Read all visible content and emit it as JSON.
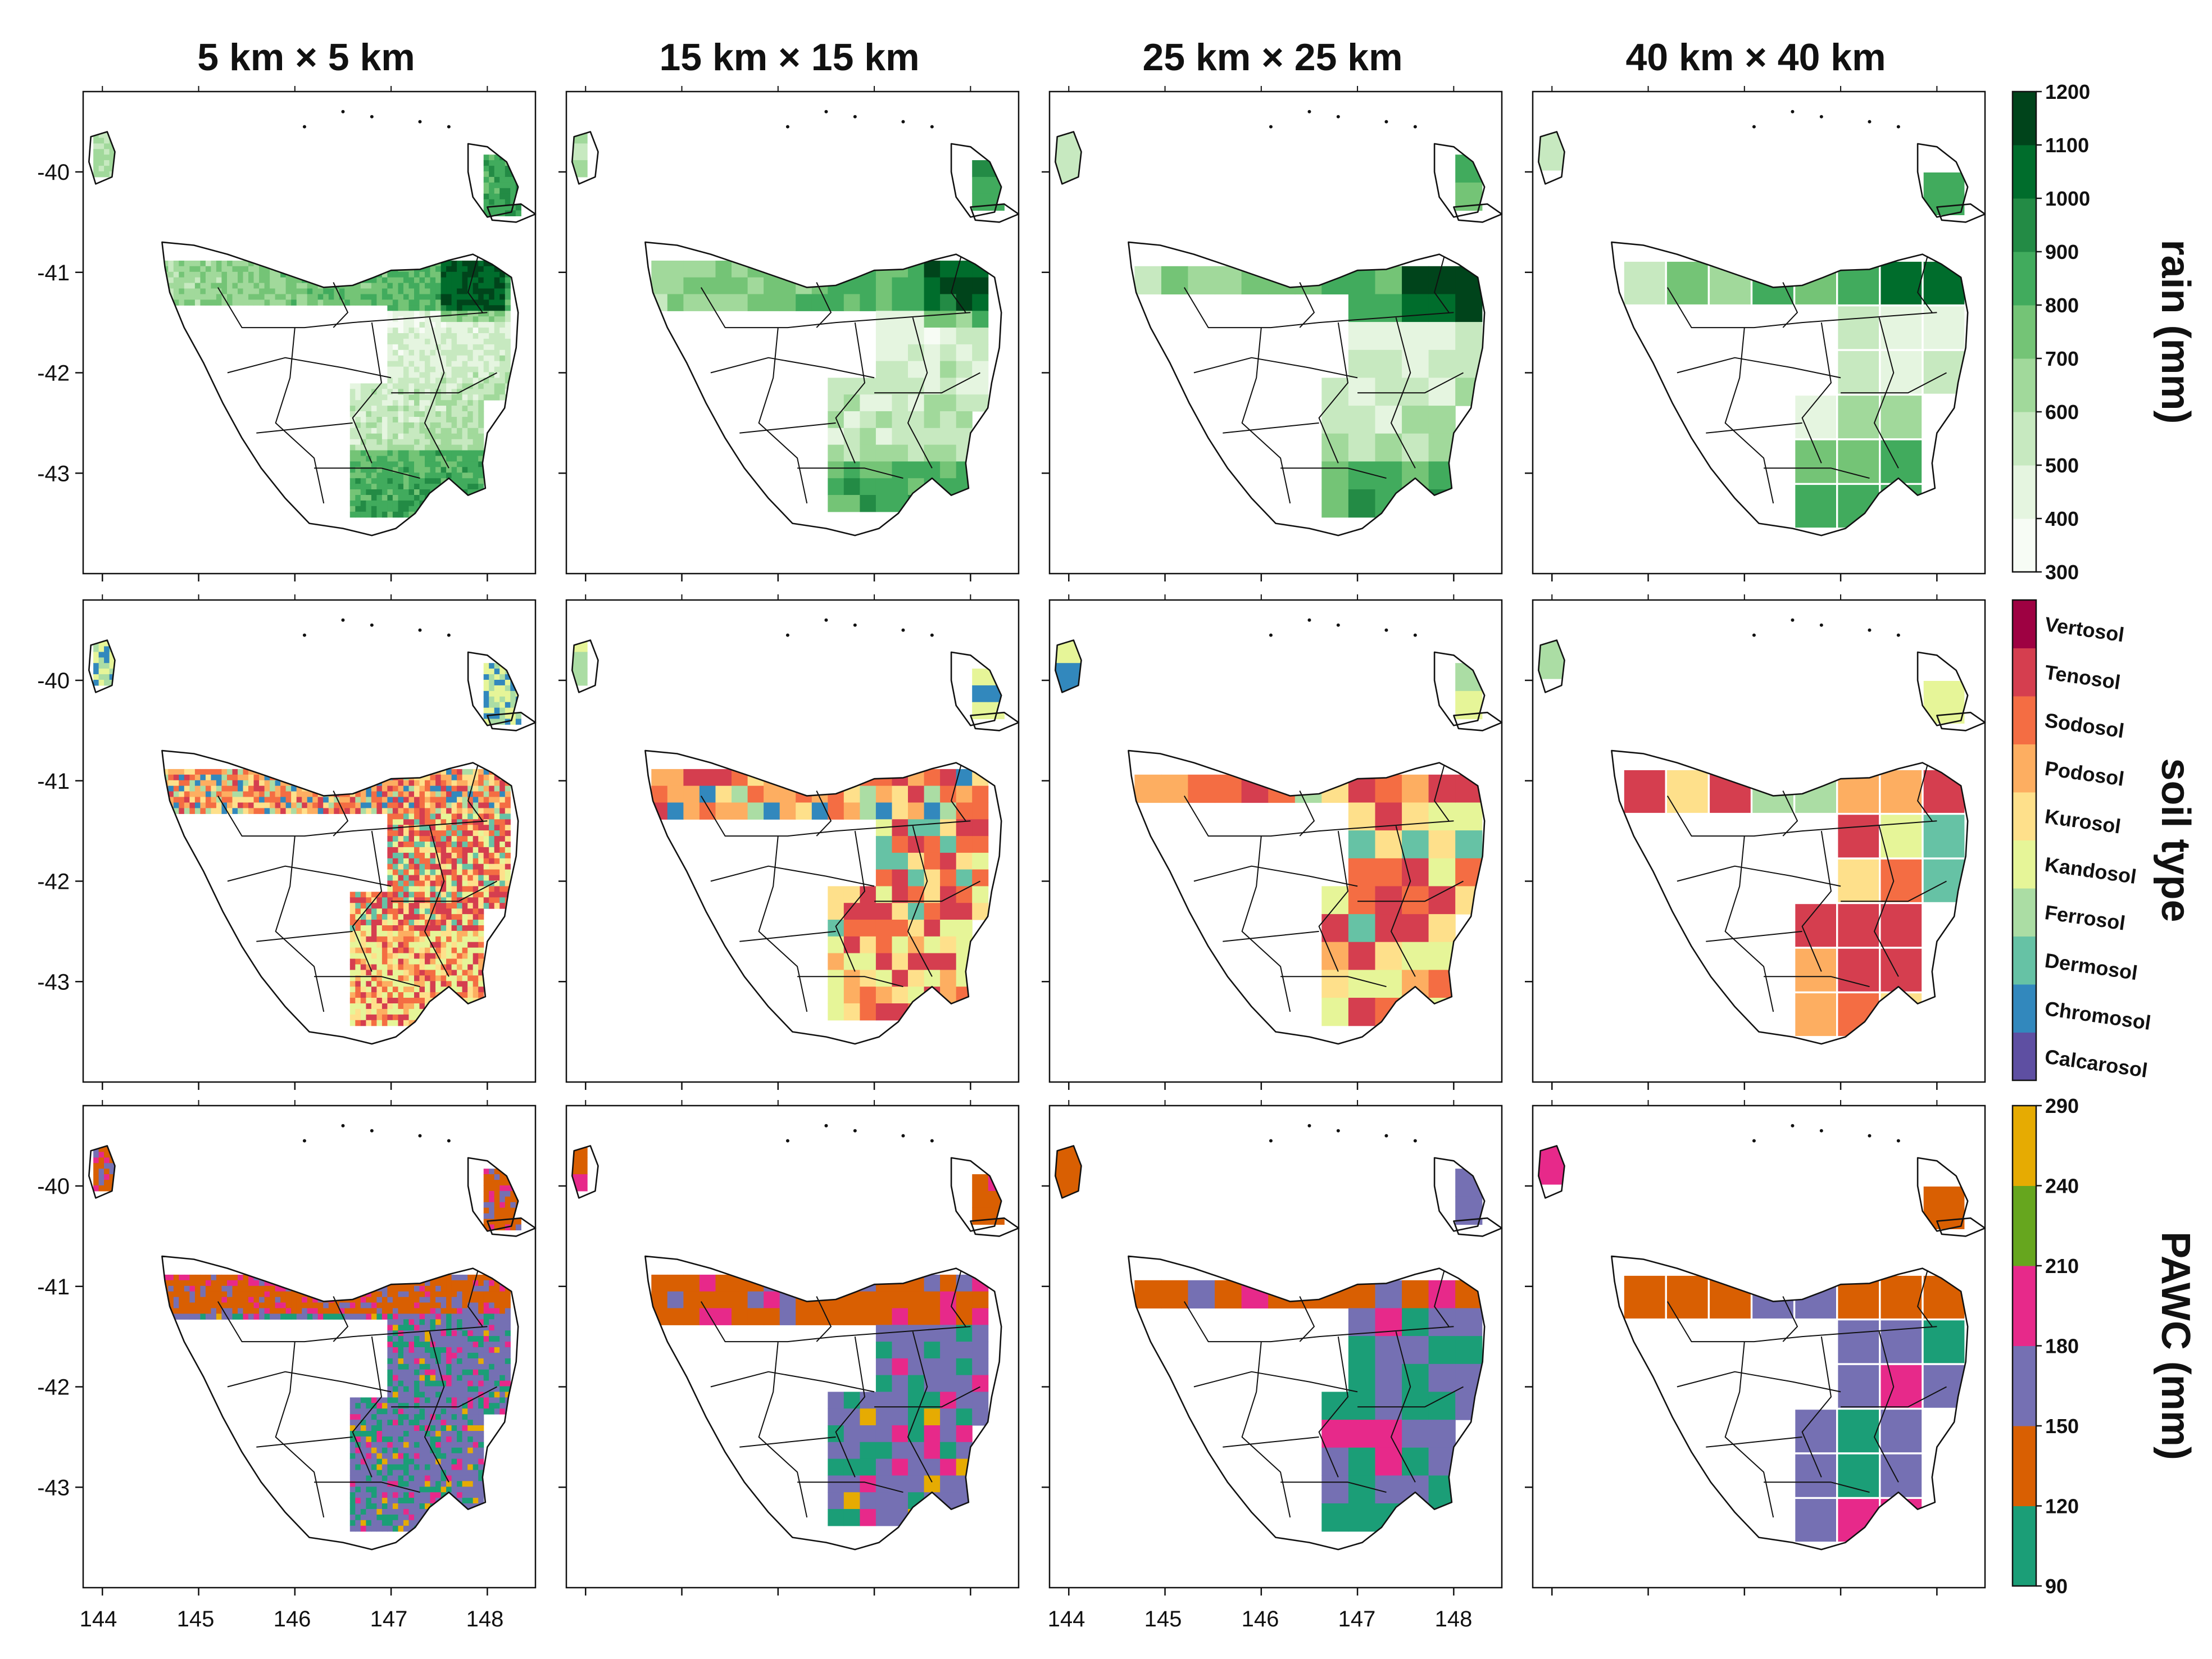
{
  "columns": [
    {
      "title": "5 km × 5 km",
      "res": 5
    },
    {
      "title": "15 km × 15 km",
      "res": 15
    },
    {
      "title": "25 km × 25 km",
      "res": 25
    },
    {
      "title": "40 km × 40 km",
      "res": 40
    }
  ],
  "axes": {
    "lon_ticks": [
      "144",
      "145",
      "146",
      "147",
      "148"
    ],
    "lat_ticks": [
      "-40",
      "-41",
      "-42",
      "-43"
    ],
    "lon_range": [
      143.8,
      148.5
    ],
    "lat_range": [
      -44.0,
      -39.2
    ]
  },
  "rows": [
    {
      "key": "rain",
      "title": "rain (mm)",
      "type": "continuous",
      "levels": [
        "300",
        "400",
        "500",
        "600",
        "700",
        "800",
        "900",
        "1000",
        "1100",
        "1200"
      ],
      "colors": [
        "#f7fcf5",
        "#e5f5e0",
        "#c7e9c0",
        "#a1d99b",
        "#74c476",
        "#41ab5d",
        "#238b45",
        "#006d2c",
        "#00441b"
      ]
    },
    {
      "key": "soil",
      "title": "soil type",
      "type": "categorical",
      "classes": [
        "Vertosol",
        "Tenosol",
        "Sodosol",
        "Podosol",
        "Kurosol",
        "Kandosol",
        "Ferrosol",
        "Dermosol",
        "Chromosol",
        "Calcarosol"
      ],
      "colors": [
        "#5e4fa2",
        "#3288bd",
        "#66c2a5",
        "#abdda4",
        "#e6f598",
        "#fee08b",
        "#fdae61",
        "#f46d43",
        "#d53e4f",
        "#9e0142"
      ]
    },
    {
      "key": "pawc",
      "title": "PAWC (mm)",
      "type": "continuous",
      "levels": [
        "90",
        "120",
        "150",
        "180",
        "210",
        "240",
        "290"
      ],
      "colors": [
        "#1b9e77",
        "#d95f02",
        "#7570b3",
        "#e7298a",
        "#66a61e",
        "#e6ab02"
      ]
    }
  ]
}
